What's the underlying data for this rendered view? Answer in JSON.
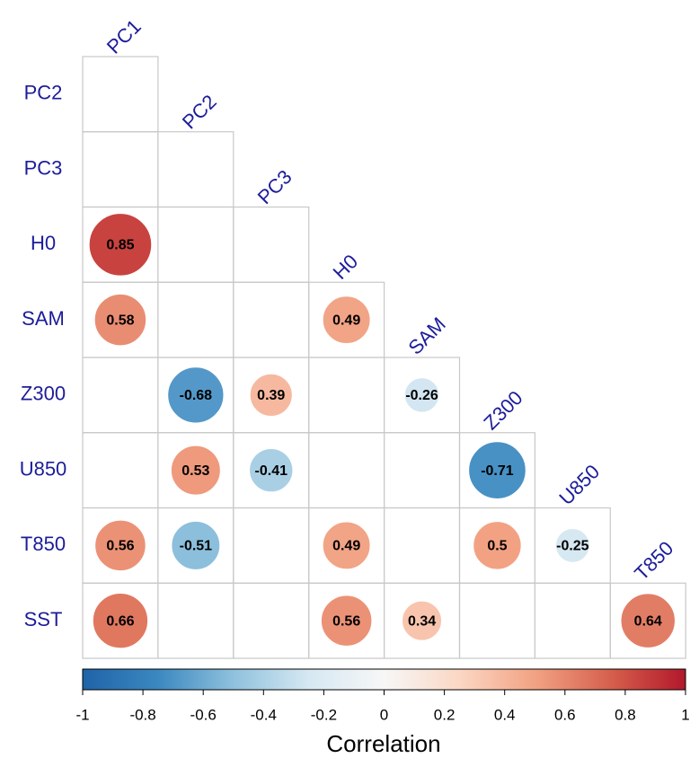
{
  "chart_data": {
    "type": "corrplot",
    "rows": [
      "PC2",
      "PC3",
      "H0",
      "SAM",
      "Z300",
      "U850",
      "T850",
      "SST"
    ],
    "columns": [
      "PC1",
      "PC2",
      "PC3",
      "H0",
      "SAM",
      "Z300",
      "U850",
      "T850"
    ],
    "matrix": [
      [
        null
      ],
      [
        null,
        null
      ],
      [
        0.85,
        null,
        null
      ],
      [
        0.58,
        null,
        null,
        0.49
      ],
      [
        null,
        -0.68,
        0.39,
        null,
        -0.26
      ],
      [
        null,
        0.53,
        -0.41,
        null,
        null,
        -0.71
      ],
      [
        0.56,
        -0.51,
        null,
        0.49,
        null,
        0.5,
        -0.25
      ],
      [
        0.66,
        null,
        null,
        0.56,
        0.34,
        null,
        null,
        0.64
      ]
    ],
    "colors": [
      "#1f63a8",
      "#3b88c0",
      "#8fc1dd",
      "#d6e8f2",
      "#f7f7f7",
      "#fbd7c4",
      "#f2a283",
      "#d6604d",
      "#b2182b"
    ],
    "clim": [
      -1,
      1
    ],
    "colorbar_ticks": [
      -1,
      -0.8,
      -0.6,
      -0.4,
      -0.2,
      0,
      0.2,
      0.4,
      0.6,
      0.8,
      1
    ],
    "colorbar_label": "Correlation"
  }
}
